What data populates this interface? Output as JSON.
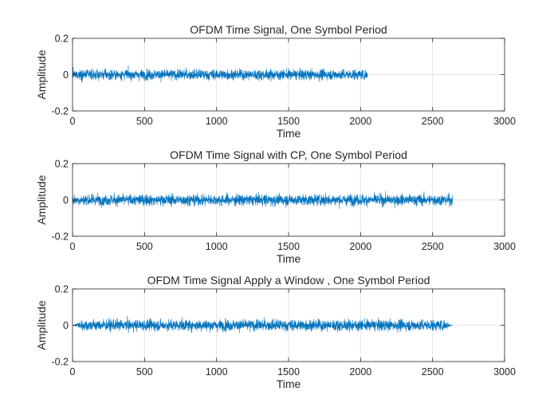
{
  "chart_data": [
    {
      "type": "line",
      "title": "OFDM Time Signal, One Symbol Period",
      "xlabel": "Time",
      "ylabel": "Amplitude",
      "xlim": [
        0,
        3000
      ],
      "ylim": [
        -0.2,
        0.2
      ],
      "xticks": [
        0,
        500,
        1000,
        1500,
        2000,
        2500,
        3000
      ],
      "xtick_labels": [
        "0",
        "500",
        "1000",
        "1500",
        "2000",
        "2500",
        "3000"
      ],
      "yticks": [
        -0.2,
        0,
        0.2
      ],
      "ytick_labels": [
        "-0.2",
        "0",
        "0.2"
      ],
      "grid": true,
      "series": [
        {
          "color": "#0072BD",
          "samples": 2048,
          "x_range": [
            0,
            2048
          ],
          "envelope_peak": 0.065,
          "window_taper": false
        }
      ]
    },
    {
      "type": "line",
      "title": "OFDM Time Signal with CP, One Symbol Period",
      "xlabel": "Time",
      "ylabel": "Amplitude",
      "xlim": [
        0,
        3000
      ],
      "ylim": [
        -0.2,
        0.2
      ],
      "xticks": [
        0,
        500,
        1000,
        1500,
        2000,
        2500,
        3000
      ],
      "xtick_labels": [
        "0",
        "500",
        "1000",
        "1500",
        "2000",
        "2500",
        "3000"
      ],
      "yticks": [
        -0.2,
        0,
        0.2
      ],
      "ytick_labels": [
        "-0.2",
        "0",
        "0.2"
      ],
      "grid": true,
      "series": [
        {
          "color": "#0072BD",
          "samples": 2640,
          "x_range": [
            0,
            2640
          ],
          "envelope_peak": 0.07,
          "window_taper": false
        }
      ]
    },
    {
      "type": "line",
      "title": "OFDM Time Signal Apply a Window , One Symbol Period",
      "xlabel": "Time",
      "ylabel": "Amplitude",
      "xlim": [
        0,
        3000
      ],
      "ylim": [
        -0.2,
        0.2
      ],
      "xticks": [
        0,
        500,
        1000,
        1500,
        2000,
        2500,
        3000
      ],
      "xtick_labels": [
        "0",
        "500",
        "1000",
        "1500",
        "2000",
        "2500",
        "3000"
      ],
      "yticks": [
        -0.2,
        0,
        0.2
      ],
      "ytick_labels": [
        "-0.2",
        "0",
        "0.2"
      ],
      "grid": true,
      "series": [
        {
          "color": "#0072BD",
          "samples": 2640,
          "x_range": [
            0,
            2640
          ],
          "envelope_peak": 0.07,
          "window_taper": true
        }
      ]
    }
  ]
}
